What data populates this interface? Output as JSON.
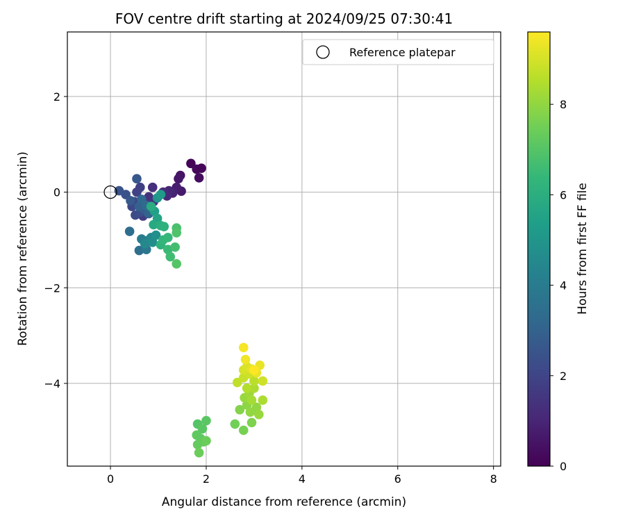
{
  "chart_data": {
    "type": "scatter",
    "title": "FOV centre drift starting at 2024/09/25 07:30:41",
    "xlabel": "Angular distance from reference (arcmin)",
    "ylabel": "Rotation from reference (arcmin)",
    "xlim": [
      -0.9,
      8.15
    ],
    "ylim": [
      -5.73,
      3.35
    ],
    "xticks": [
      0,
      2,
      4,
      6,
      8
    ],
    "xtick_labels": [
      "0",
      "2",
      "4",
      "6",
      "8"
    ],
    "yticks": [
      -4,
      -2,
      0,
      2
    ],
    "ytick_labels": [
      "−4",
      "−2",
      "0",
      "2"
    ],
    "grid": true,
    "legend": {
      "position": "top-right",
      "entries": [
        {
          "label": "Reference platepar",
          "marker": "open-circle"
        }
      ]
    },
    "reference_point": {
      "x": 0,
      "y": 0
    },
    "colorbar": {
      "label": "Hours from first FF file",
      "range": [
        0,
        9.6
      ],
      "ticks": [
        0,
        2,
        4,
        6,
        8
      ],
      "tick_labels": [
        "0",
        "2",
        "4",
        "6",
        "8"
      ],
      "colormap": "viridis",
      "colormap_stops": [
        "#440154",
        "#482878",
        "#3e4989",
        "#31688e",
        "#26828e",
        "#1f9e89",
        "#35b779",
        "#6ece58",
        "#b5de2b",
        "#fde725"
      ]
    },
    "series": [
      {
        "points": [
          {
            "x": 1.68,
            "y": 0.6,
            "c": 0.1
          },
          {
            "x": 1.8,
            "y": 0.48,
            "c": 0.2
          },
          {
            "x": 1.9,
            "y": 0.5,
            "c": 0.15
          },
          {
            "x": 1.85,
            "y": 0.3,
            "c": 0.3
          },
          {
            "x": 1.46,
            "y": 0.35,
            "c": 0.5
          },
          {
            "x": 1.42,
            "y": 0.28,
            "c": 0.6
          },
          {
            "x": 1.48,
            "y": 0.02,
            "c": 0.7
          },
          {
            "x": 1.38,
            "y": 0.1,
            "c": 0.8
          },
          {
            "x": 1.3,
            "y": -0.02,
            "c": 0.9
          },
          {
            "x": 1.22,
            "y": 0.03,
            "c": 1.0
          },
          {
            "x": 1.18,
            "y": -0.08,
            "c": 1.1
          },
          {
            "x": 1.1,
            "y": 0.0,
            "c": 1.2
          },
          {
            "x": 0.88,
            "y": 0.1,
            "c": 1.3
          },
          {
            "x": 0.8,
            "y": -0.1,
            "c": 1.4
          },
          {
            "x": 0.9,
            "y": -0.2,
            "c": 1.5
          },
          {
            "x": 0.75,
            "y": -0.3,
            "c": 1.6
          },
          {
            "x": 0.68,
            "y": -0.5,
            "c": 1.7
          },
          {
            "x": 0.62,
            "y": 0.1,
            "c": 1.8
          },
          {
            "x": 0.55,
            "y": 0.0,
            "c": 1.9
          },
          {
            "x": 0.5,
            "y": -0.2,
            "c": 2.0
          },
          {
            "x": 0.45,
            "y": -0.3,
            "c": 2.1
          },
          {
            "x": 0.52,
            "y": -0.48,
            "c": 2.2
          },
          {
            "x": 0.62,
            "y": -0.42,
            "c": 2.3
          },
          {
            "x": 0.32,
            "y": -0.05,
            "c": 2.4
          },
          {
            "x": 0.18,
            "y": 0.03,
            "c": 2.5
          },
          {
            "x": 0.55,
            "y": 0.28,
            "c": 2.6
          },
          {
            "x": 0.42,
            "y": -0.18,
            "c": 2.7
          },
          {
            "x": 0.7,
            "y": -0.35,
            "c": 2.8
          },
          {
            "x": 0.6,
            "y": -0.3,
            "c": 3.0
          },
          {
            "x": 0.8,
            "y": -0.45,
            "c": 3.1
          },
          {
            "x": 0.65,
            "y": -0.15,
            "c": 3.2
          },
          {
            "x": 0.75,
            "y": -0.28,
            "c": 3.3
          },
          {
            "x": 0.4,
            "y": -0.82,
            "c": 3.4
          },
          {
            "x": 0.6,
            "y": -1.22,
            "c": 3.5
          },
          {
            "x": 0.75,
            "y": -1.2,
            "c": 3.8
          },
          {
            "x": 0.65,
            "y": -0.98,
            "c": 4.0
          },
          {
            "x": 0.8,
            "y": -1.0,
            "c": 4.2
          },
          {
            "x": 0.85,
            "y": -0.95,
            "c": 4.4
          },
          {
            "x": 0.72,
            "y": -1.08,
            "c": 4.5
          },
          {
            "x": 0.88,
            "y": -1.05,
            "c": 4.7
          },
          {
            "x": 0.95,
            "y": -0.9,
            "c": 4.8
          },
          {
            "x": 0.98,
            "y": -0.12,
            "c": 5.0
          },
          {
            "x": 1.05,
            "y": -0.05,
            "c": 5.2
          },
          {
            "x": 0.92,
            "y": -0.4,
            "c": 5.4
          },
          {
            "x": 0.98,
            "y": -0.55,
            "c": 5.6
          },
          {
            "x": 0.9,
            "y": -0.68,
            "c": 5.8
          },
          {
            "x": 0.85,
            "y": -0.3,
            "c": 5.9
          },
          {
            "x": 1.05,
            "y": -0.7,
            "c": 6.0
          },
          {
            "x": 1.12,
            "y": -0.72,
            "c": 6.1
          },
          {
            "x": 1.05,
            "y": -1.1,
            "c": 6.2
          },
          {
            "x": 1.1,
            "y": -1.0,
            "c": 6.3
          },
          {
            "x": 1.2,
            "y": -0.95,
            "c": 6.4
          },
          {
            "x": 1.2,
            "y": -1.2,
            "c": 6.5
          },
          {
            "x": 1.25,
            "y": -1.35,
            "c": 6.6
          },
          {
            "x": 1.35,
            "y": -1.15,
            "c": 6.7
          },
          {
            "x": 1.38,
            "y": -0.75,
            "c": 6.8
          },
          {
            "x": 1.38,
            "y": -0.85,
            "c": 6.9
          },
          {
            "x": 1.38,
            "y": -1.5,
            "c": 7.0
          },
          {
            "x": 1.82,
            "y": -4.85,
            "c": 7.0
          },
          {
            "x": 1.92,
            "y": -4.95,
            "c": 7.1
          },
          {
            "x": 2.0,
            "y": -4.78,
            "c": 7.1
          },
          {
            "x": 1.8,
            "y": -5.08,
            "c": 7.2
          },
          {
            "x": 1.88,
            "y": -5.15,
            "c": 7.2
          },
          {
            "x": 1.95,
            "y": -5.22,
            "c": 7.3
          },
          {
            "x": 1.82,
            "y": -5.28,
            "c": 7.3
          },
          {
            "x": 2.0,
            "y": -5.2,
            "c": 7.4
          },
          {
            "x": 1.85,
            "y": -5.45,
            "c": 7.4
          },
          {
            "x": 2.6,
            "y": -4.85,
            "c": 7.5
          },
          {
            "x": 2.78,
            "y": -4.98,
            "c": 7.6
          },
          {
            "x": 2.95,
            "y": -4.82,
            "c": 7.7
          },
          {
            "x": 2.7,
            "y": -4.55,
            "c": 7.8
          },
          {
            "x": 2.85,
            "y": -4.45,
            "c": 7.9
          },
          {
            "x": 2.92,
            "y": -4.6,
            "c": 8.0
          },
          {
            "x": 3.05,
            "y": -4.5,
            "c": 8.0
          },
          {
            "x": 3.1,
            "y": -4.65,
            "c": 8.1
          },
          {
            "x": 2.8,
            "y": -4.3,
            "c": 8.1
          },
          {
            "x": 2.9,
            "y": -4.2,
            "c": 8.2
          },
          {
            "x": 2.95,
            "y": -4.35,
            "c": 8.3
          },
          {
            "x": 3.0,
            "y": -4.1,
            "c": 8.4
          },
          {
            "x": 3.18,
            "y": -4.35,
            "c": 8.4
          },
          {
            "x": 2.85,
            "y": -4.1,
            "c": 8.5
          },
          {
            "x": 3.0,
            "y": -3.95,
            "c": 8.6
          },
          {
            "x": 2.65,
            "y": -3.98,
            "c": 8.7
          },
          {
            "x": 2.78,
            "y": -3.88,
            "c": 8.8
          },
          {
            "x": 2.9,
            "y": -3.8,
            "c": 8.9
          },
          {
            "x": 3.18,
            "y": -3.95,
            "c": 8.9
          },
          {
            "x": 2.78,
            "y": -3.72,
            "c": 9.0
          },
          {
            "x": 2.85,
            "y": -3.65,
            "c": 9.1
          },
          {
            "x": 2.95,
            "y": -3.7,
            "c": 9.2
          },
          {
            "x": 3.05,
            "y": -3.78,
            "c": 9.3
          },
          {
            "x": 3.12,
            "y": -3.62,
            "c": 9.3
          },
          {
            "x": 2.82,
            "y": -3.5,
            "c": 9.4
          },
          {
            "x": 2.78,
            "y": -3.25,
            "c": 9.5
          },
          {
            "x": 3.0,
            "y": -3.72,
            "c": 9.6
          }
        ]
      }
    ]
  }
}
